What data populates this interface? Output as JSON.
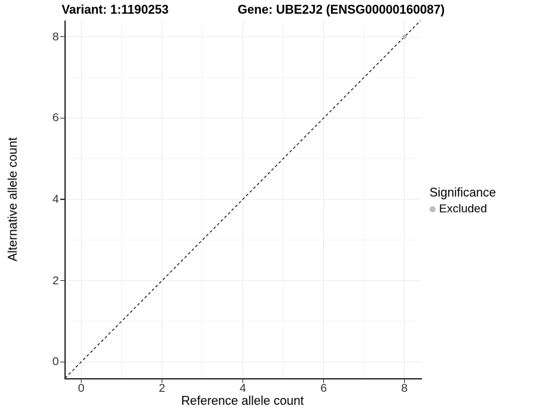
{
  "titles": {
    "variant": "Variant: 1:1190253",
    "gene": "Gene: UBE2J2 (ENSG00000160087)"
  },
  "axes": {
    "x_label": "Reference allele count",
    "y_label": "Alternative allele count"
  },
  "legend": {
    "title": "Significance",
    "items": [
      {
        "label": "Excluded",
        "color": "#bebebe"
      }
    ]
  },
  "colors": {
    "background": "#ffffff",
    "grid_major": "#ebebeb",
    "grid_minor": "#f4f4f4",
    "axis_line": "#333333",
    "tick_mark": "#333333",
    "tick_label": "#333333",
    "identity_line": "#000000"
  },
  "chart_data": {
    "type": "scatter",
    "title": "Variant: 1:1190253   Gene: UBE2J2 (ENSG00000160087)",
    "xlabel": "Reference allele count",
    "ylabel": "Alternative allele count",
    "xlim": [
      -0.4,
      8.4
    ],
    "ylim": [
      -0.4,
      8.4
    ],
    "x_ticks": [
      0,
      2,
      4,
      6,
      8
    ],
    "y_ticks": [
      0,
      2,
      4,
      6,
      8
    ],
    "x_minor_ticks": [
      1,
      3,
      5,
      7
    ],
    "y_minor_ticks": [
      1,
      3,
      5,
      7
    ],
    "grid": true,
    "legend_position": "right",
    "legend_title": "Significance",
    "series": [
      {
        "name": "Excluded",
        "color": "#bebebe",
        "point_radius": 3.2,
        "points": [
          [
            8,
            8
          ]
        ]
      }
    ],
    "identity_line": {
      "slope": 1,
      "intercept": 0,
      "style": "dashed",
      "color": "#000000"
    }
  }
}
